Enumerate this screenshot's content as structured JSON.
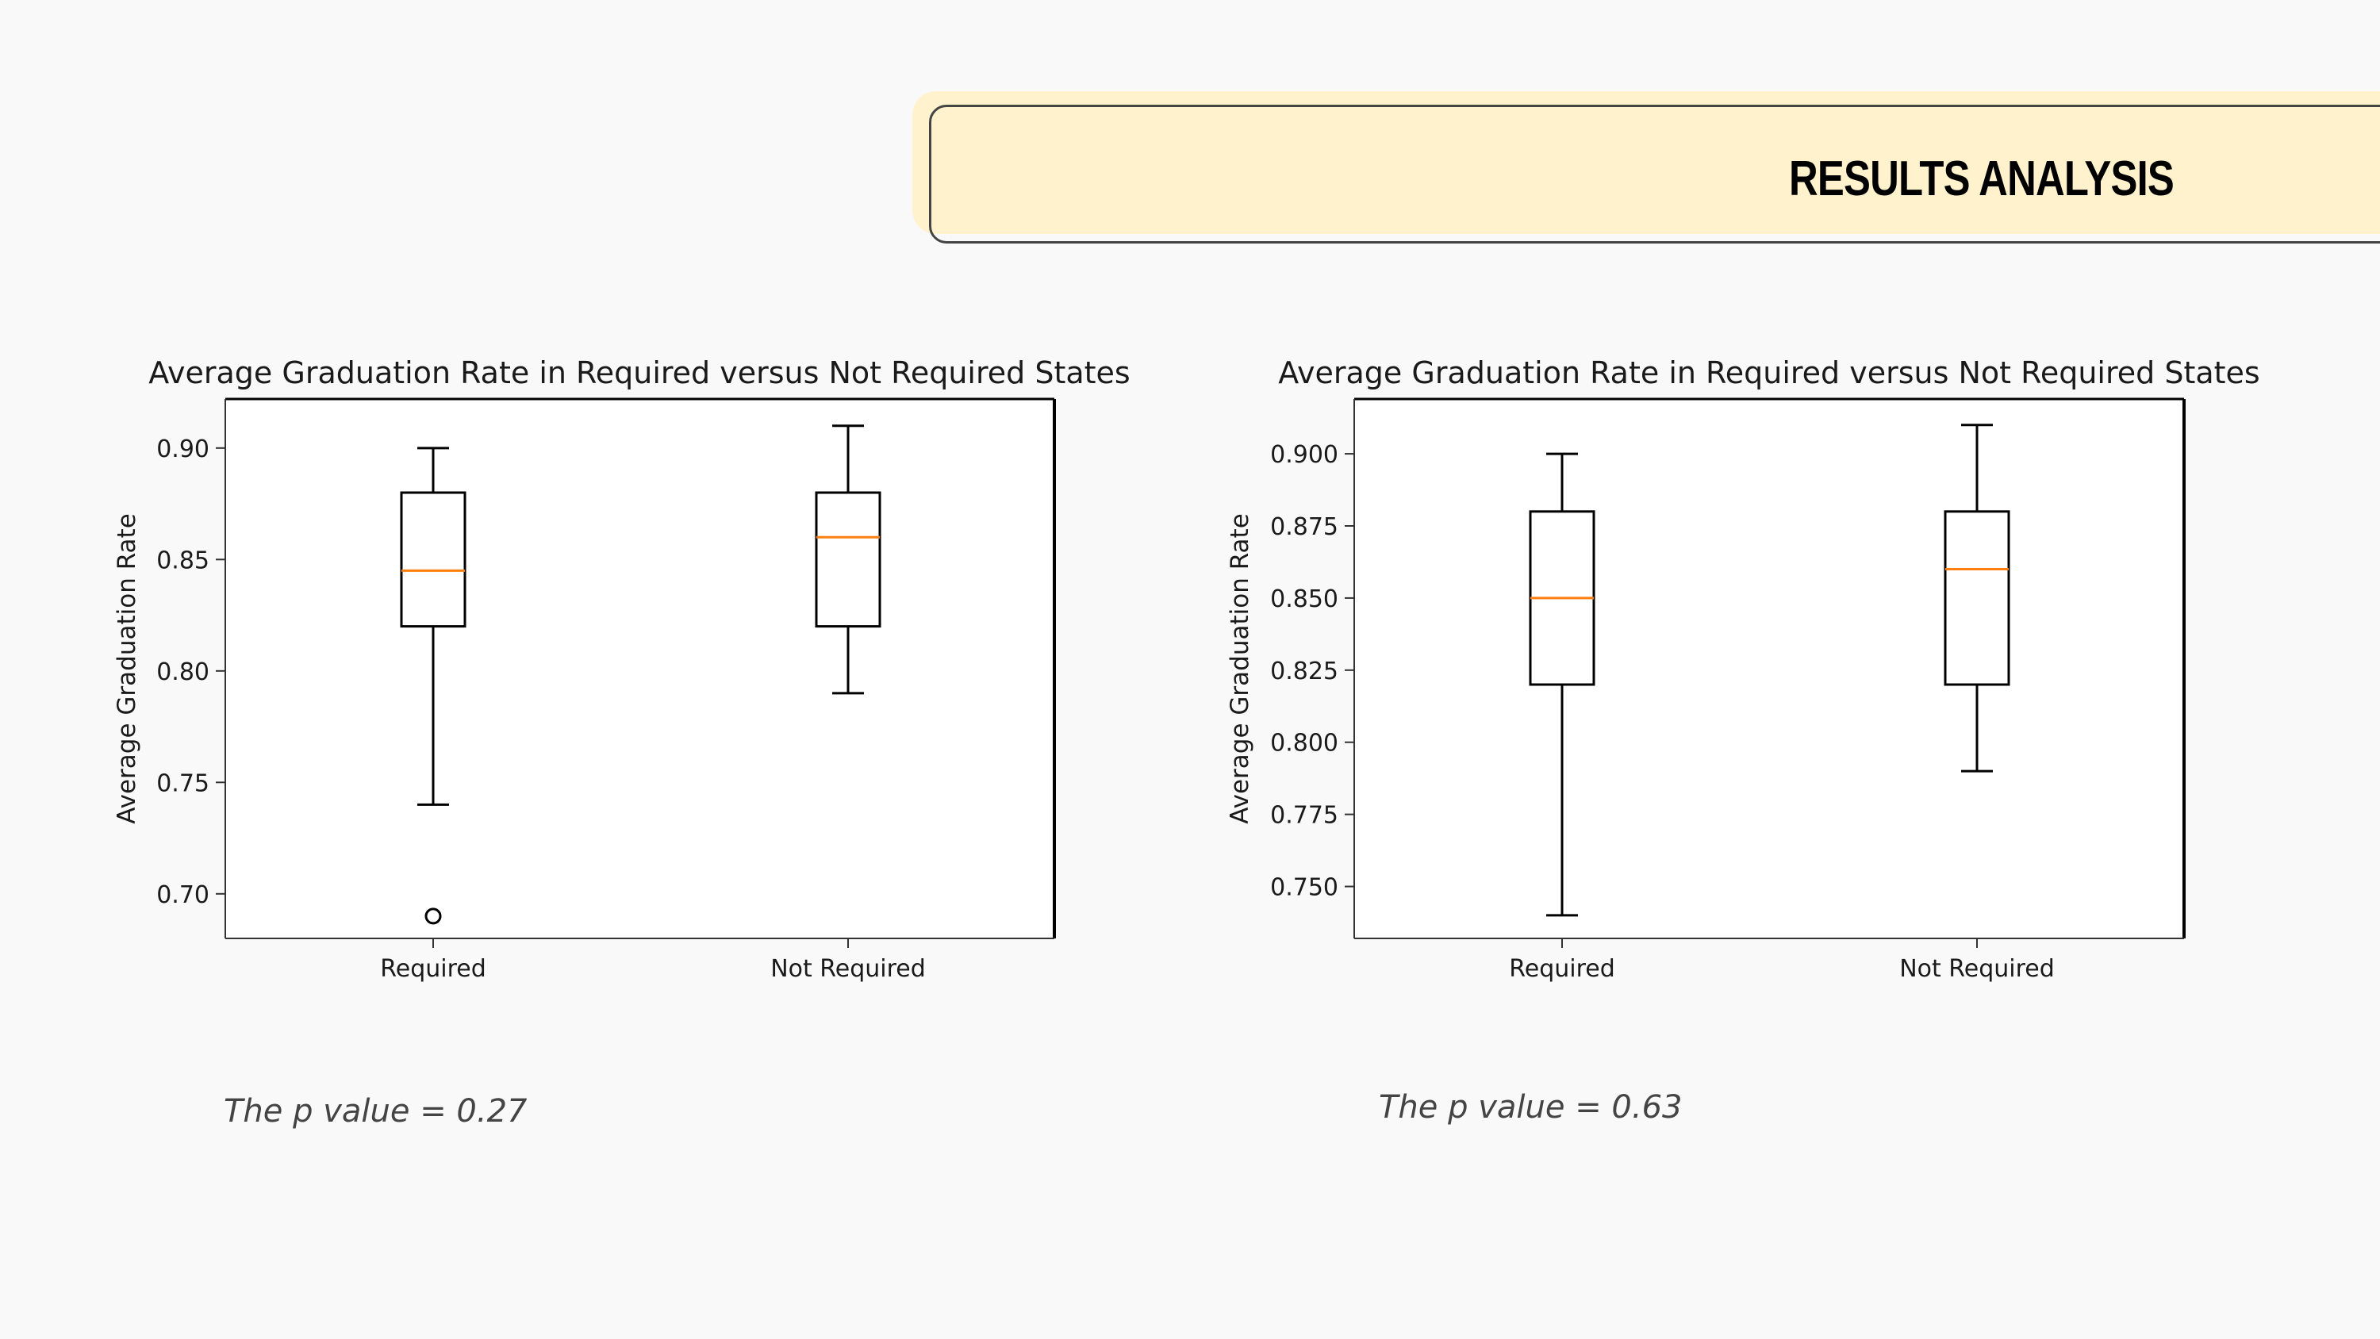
{
  "slide": {
    "title": "RESULTS ANALYSIS",
    "p_value_left": "The p value = 0.27",
    "p_value_right": "The p value = 0.63"
  },
  "colors": {
    "background": "#f9f9f9",
    "header_fill": "#fff2cc",
    "median": "#ff7f0e",
    "box_stroke": "#000000"
  },
  "chart_data": [
    {
      "type": "box",
      "title": "Average Graduation Rate in Required versus Not Required States",
      "xlabel": "",
      "ylabel": "Average Graduation Rate",
      "categories": [
        "Required",
        "Not Required"
      ],
      "ylim": [
        0.68,
        0.922
      ],
      "yticks": [
        0.7,
        0.75,
        0.8,
        0.85,
        0.9
      ],
      "ytick_labels": [
        "0.70",
        "0.75",
        "0.80",
        "0.85",
        "0.90"
      ],
      "boxes": [
        {
          "category": "Required",
          "whisker_low": 0.74,
          "q1": 0.82,
          "median": 0.845,
          "q3": 0.88,
          "whisker_high": 0.9,
          "outliers": [
            0.69
          ]
        },
        {
          "category": "Not Required",
          "whisker_low": 0.79,
          "q1": 0.82,
          "median": 0.86,
          "q3": 0.88,
          "whisker_high": 0.91,
          "outliers": []
        }
      ],
      "grid": false
    },
    {
      "type": "box",
      "title": "Average Graduation Rate in Required versus Not Required States",
      "xlabel": "",
      "ylabel": "Average Graduation Rate",
      "categories": [
        "Required",
        "Not Required"
      ],
      "ylim": [
        0.732,
        0.919
      ],
      "yticks": [
        0.75,
        0.775,
        0.8,
        0.825,
        0.85,
        0.875,
        0.9
      ],
      "ytick_labels": [
        "0.750",
        "0.775",
        "0.800",
        "0.825",
        "0.850",
        "0.875",
        "0.900"
      ],
      "boxes": [
        {
          "category": "Required",
          "whisker_low": 0.74,
          "q1": 0.82,
          "median": 0.85,
          "q3": 0.88,
          "whisker_high": 0.9,
          "outliers": []
        },
        {
          "category": "Not Required",
          "whisker_low": 0.79,
          "q1": 0.82,
          "median": 0.86,
          "q3": 0.88,
          "whisker_high": 0.91,
          "outliers": []
        }
      ],
      "grid": false
    }
  ]
}
